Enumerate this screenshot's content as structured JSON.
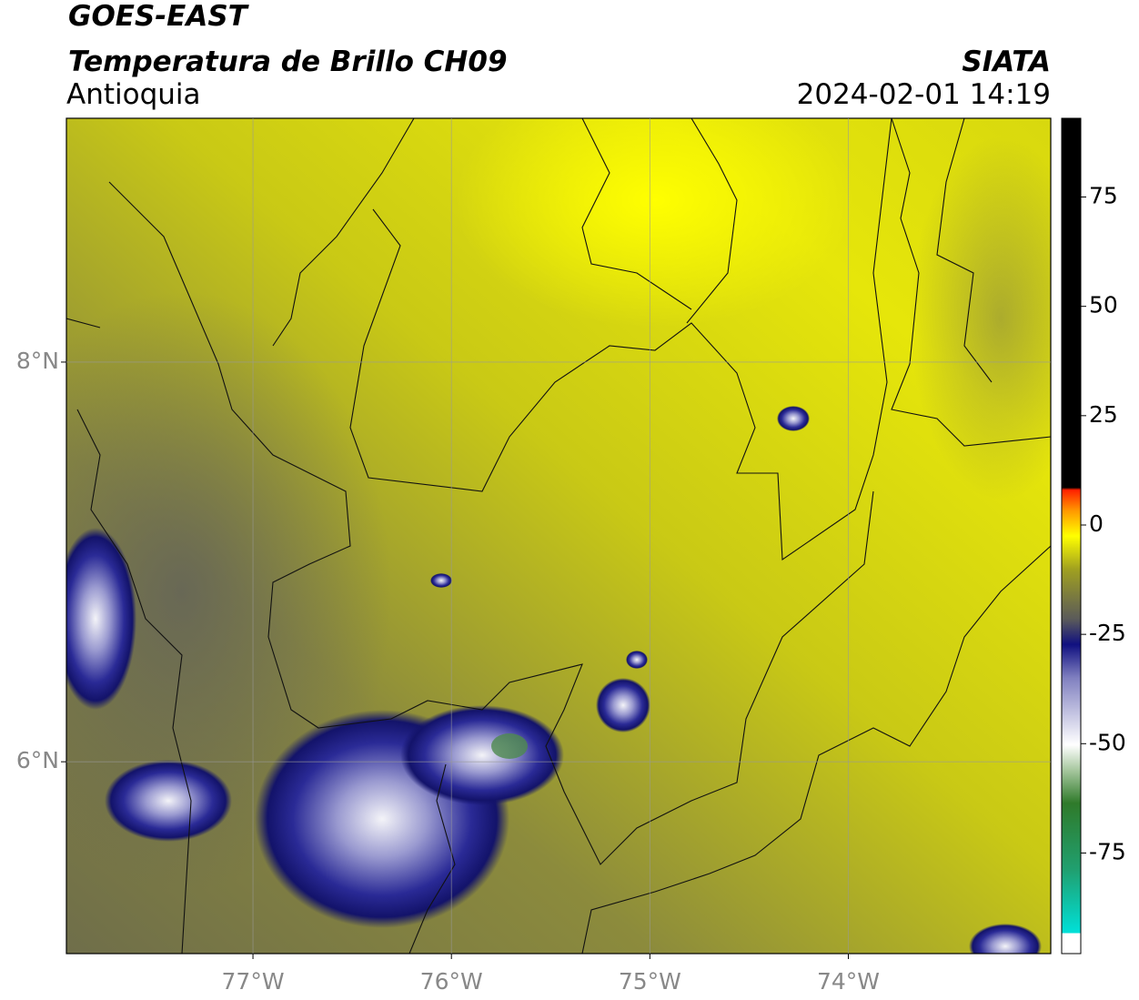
{
  "header": {
    "title": "GOES-EAST",
    "subtitle": "Temperatura de Brillo CH09",
    "region": "Antioquia",
    "source": "SIATA",
    "datetime": "2024-02-01 14:19"
  },
  "map": {
    "xlim": [
      -77.94,
      -72.98
    ],
    "ylim": [
      5.04,
      9.22
    ],
    "xticks": [
      {
        "value": -77,
        "label": "77°W"
      },
      {
        "value": -76,
        "label": "76°W"
      },
      {
        "value": -75,
        "label": "75°W"
      },
      {
        "value": -74,
        "label": "74°W"
      }
    ],
    "yticks": [
      {
        "value": 6,
        "label": "6°N"
      },
      {
        "value": 8,
        "label": "8°N"
      }
    ],
    "grid": true
  },
  "colorbar": {
    "lim": [
      -98,
      93
    ],
    "ticks": [
      75,
      50,
      25,
      0,
      -25,
      -50,
      -75
    ]
  }
}
